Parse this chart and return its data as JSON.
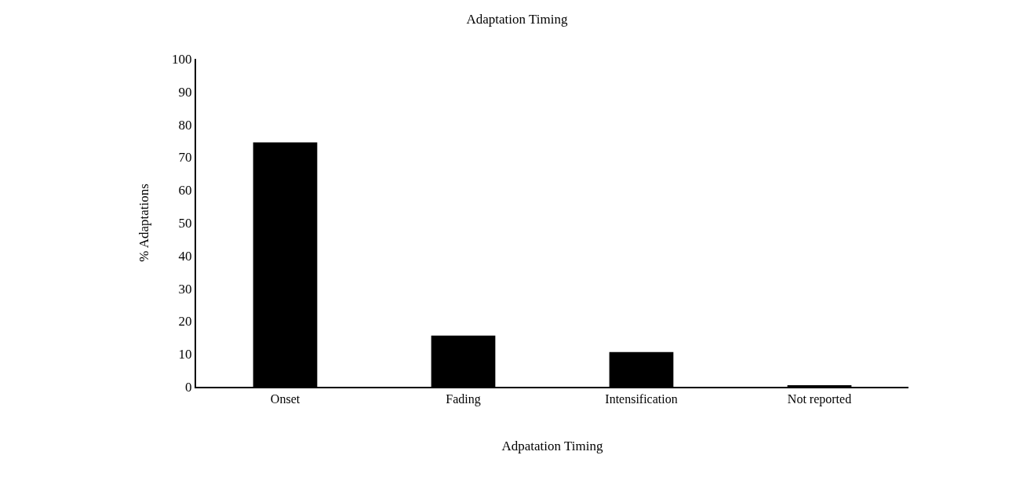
{
  "chart_data": {
    "type": "bar",
    "title": "Adaptation Timing",
    "xlabel": "Adpatation Timing",
    "ylabel": "% Adaptations",
    "categories": [
      "Onset",
      "Fading",
      "Intensification",
      "Not reported"
    ],
    "values": [
      74.5,
      15.6,
      10.6,
      0.3
    ],
    "color": "#000000",
    "ylim": [
      0,
      100
    ],
    "yticks": [
      0,
      10,
      20,
      30,
      40,
      50,
      60,
      70,
      80,
      90,
      100
    ],
    "grid": false,
    "legend": false
  }
}
